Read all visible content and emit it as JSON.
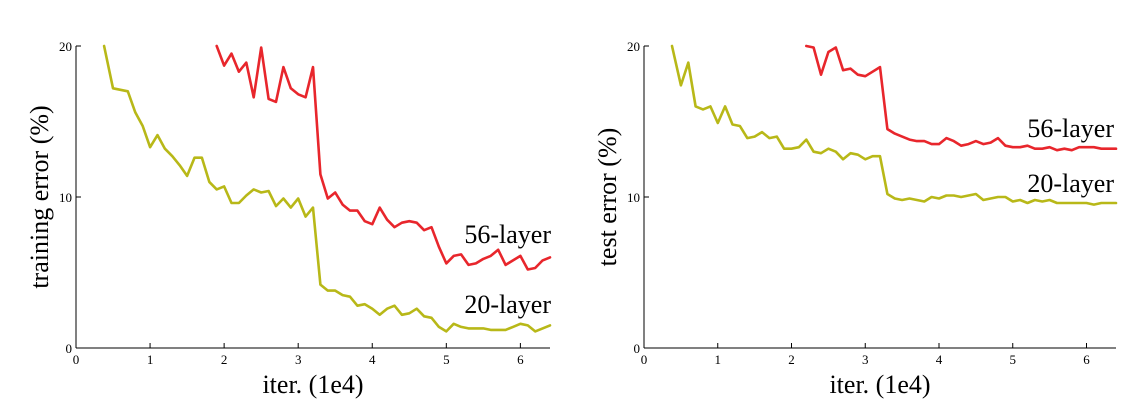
{
  "chart_data": [
    {
      "type": "line",
      "xlabel": "iter. (1e4)",
      "ylabel": "training error (%)",
      "xlim": [
        0,
        6.4
      ],
      "ylim": [
        0,
        20
      ],
      "xticks": [
        "0",
        "1",
        "2",
        "3",
        "4",
        "5",
        "6"
      ],
      "yticks": [
        "0",
        "10",
        "20"
      ],
      "grid": false,
      "legend": "inline labels at right",
      "series": [
        {
          "name": "56-layer",
          "color": "#e8262c",
          "x": [
            1.9,
            2.0,
            2.1,
            2.2,
            2.3,
            2.4,
            2.5,
            2.6,
            2.7,
            2.8,
            2.9,
            3.0,
            3.1,
            3.2,
            3.3,
            3.4,
            3.5,
            3.6,
            3.7,
            3.8,
            3.9,
            4.0,
            4.1,
            4.2,
            4.3,
            4.4,
            4.5,
            4.6,
            4.7,
            4.8,
            4.9,
            5.0,
            5.1,
            5.2,
            5.3,
            5.4,
            5.5,
            5.6,
            5.7,
            5.8,
            5.9,
            6.0,
            6.1,
            6.2,
            6.3,
            6.4
          ],
          "values": [
            20.0,
            18.7,
            19.5,
            18.3,
            18.9,
            16.6,
            19.9,
            16.5,
            16.3,
            18.6,
            17.2,
            16.8,
            16.6,
            18.6,
            11.5,
            9.9,
            10.3,
            9.5,
            9.1,
            9.1,
            8.4,
            8.2,
            9.3,
            8.5,
            8.0,
            8.3,
            8.4,
            8.3,
            7.8,
            8.0,
            6.7,
            5.6,
            6.1,
            6.2,
            5.5,
            5.6,
            5.9,
            6.1,
            6.5,
            5.5,
            5.8,
            6.1,
            5.2,
            5.3,
            5.8,
            6.0
          ]
        },
        {
          "name": "20-layer",
          "color": "#b8b818",
          "x": [
            0.38,
            0.5,
            0.6,
            0.7,
            0.8,
            0.9,
            1.0,
            1.1,
            1.2,
            1.3,
            1.4,
            1.5,
            1.6,
            1.7,
            1.8,
            1.9,
            2.0,
            2.1,
            2.2,
            2.3,
            2.4,
            2.5,
            2.6,
            2.7,
            2.8,
            2.9,
            3.0,
            3.1,
            3.2,
            3.3,
            3.4,
            3.5,
            3.6,
            3.7,
            3.8,
            3.9,
            4.0,
            4.1,
            4.2,
            4.3,
            4.4,
            4.5,
            4.6,
            4.7,
            4.8,
            4.9,
            5.0,
            5.1,
            5.2,
            5.3,
            5.4,
            5.5,
            5.6,
            5.7,
            5.8,
            5.9,
            6.0,
            6.1,
            6.2,
            6.3,
            6.4
          ],
          "values": [
            20.0,
            17.2,
            17.1,
            17.0,
            15.6,
            14.7,
            13.3,
            14.1,
            13.2,
            12.7,
            12.1,
            11.4,
            12.6,
            12.6,
            11.0,
            10.5,
            10.7,
            9.6,
            9.6,
            10.1,
            10.5,
            10.3,
            10.4,
            9.4,
            9.9,
            9.3,
            9.9,
            8.7,
            9.3,
            4.2,
            3.8,
            3.8,
            3.5,
            3.4,
            2.8,
            2.9,
            2.6,
            2.2,
            2.6,
            2.8,
            2.2,
            2.3,
            2.6,
            2.1,
            2.0,
            1.4,
            1.1,
            1.6,
            1.4,
            1.3,
            1.3,
            1.3,
            1.2,
            1.2,
            1.2,
            1.4,
            1.6,
            1.5,
            1.1,
            1.3,
            1.5
          ]
        }
      ]
    },
    {
      "type": "line",
      "xlabel": "iter. (1e4)",
      "ylabel": "test error (%)",
      "xlim": [
        0,
        6.4
      ],
      "ylim": [
        0,
        20
      ],
      "xticks": [
        "0",
        "1",
        "2",
        "3",
        "4",
        "5",
        "6"
      ],
      "yticks": [
        "0",
        "10",
        "20"
      ],
      "grid": false,
      "legend": "inline labels at right",
      "series": [
        {
          "name": "56-layer",
          "color": "#e8262c",
          "x": [
            2.2,
            2.3,
            2.4,
            2.5,
            2.6,
            2.7,
            2.8,
            2.9,
            3.0,
            3.1,
            3.2,
            3.3,
            3.4,
            3.5,
            3.6,
            3.7,
            3.8,
            3.9,
            4.0,
            4.1,
            4.2,
            4.3,
            4.4,
            4.5,
            4.6,
            4.7,
            4.8,
            4.9,
            5.0,
            5.1,
            5.2,
            5.3,
            5.4,
            5.5,
            5.6,
            5.7,
            5.8,
            5.9,
            6.0,
            6.1,
            6.2,
            6.3,
            6.4
          ],
          "values": [
            20.0,
            19.9,
            18.1,
            19.6,
            19.9,
            18.4,
            18.5,
            18.1,
            18.0,
            18.3,
            18.6,
            14.5,
            14.2,
            14.0,
            13.8,
            13.7,
            13.7,
            13.5,
            13.5,
            13.9,
            13.7,
            13.4,
            13.5,
            13.7,
            13.5,
            13.6,
            13.9,
            13.4,
            13.3,
            13.3,
            13.4,
            13.2,
            13.2,
            13.3,
            13.1,
            13.2,
            13.1,
            13.3,
            13.3,
            13.3,
            13.2,
            13.2,
            13.2
          ]
        },
        {
          "name": "20-layer",
          "color": "#b8b818",
          "x": [
            0.38,
            0.5,
            0.6,
            0.7,
            0.8,
            0.9,
            1.0,
            1.1,
            1.2,
            1.3,
            1.4,
            1.5,
            1.6,
            1.7,
            1.8,
            1.9,
            2.0,
            2.1,
            2.2,
            2.3,
            2.4,
            2.5,
            2.6,
            2.7,
            2.8,
            2.9,
            3.0,
            3.1,
            3.2,
            3.3,
            3.4,
            3.5,
            3.6,
            3.7,
            3.8,
            3.9,
            4.0,
            4.1,
            4.2,
            4.3,
            4.4,
            4.5,
            4.6,
            4.7,
            4.8,
            4.9,
            5.0,
            5.1,
            5.2,
            5.3,
            5.4,
            5.5,
            5.6,
            5.7,
            5.8,
            5.9,
            6.0,
            6.1,
            6.2,
            6.3,
            6.4
          ],
          "values": [
            20.0,
            17.4,
            18.9,
            16.0,
            15.8,
            16.0,
            14.9,
            16.0,
            14.8,
            14.7,
            13.9,
            14.0,
            14.3,
            13.9,
            14.0,
            13.2,
            13.2,
            13.3,
            13.8,
            13.0,
            12.9,
            13.2,
            13.0,
            12.5,
            12.9,
            12.8,
            12.5,
            12.7,
            12.7,
            10.2,
            9.9,
            9.8,
            9.9,
            9.8,
            9.7,
            10.0,
            9.9,
            10.1,
            10.1,
            10.0,
            10.1,
            10.2,
            9.8,
            9.9,
            10.0,
            10.0,
            9.7,
            9.8,
            9.6,
            9.8,
            9.7,
            9.8,
            9.6,
            9.6,
            9.6,
            9.6,
            9.6,
            9.5,
            9.6,
            9.6,
            9.6
          ]
        }
      ]
    }
  ]
}
